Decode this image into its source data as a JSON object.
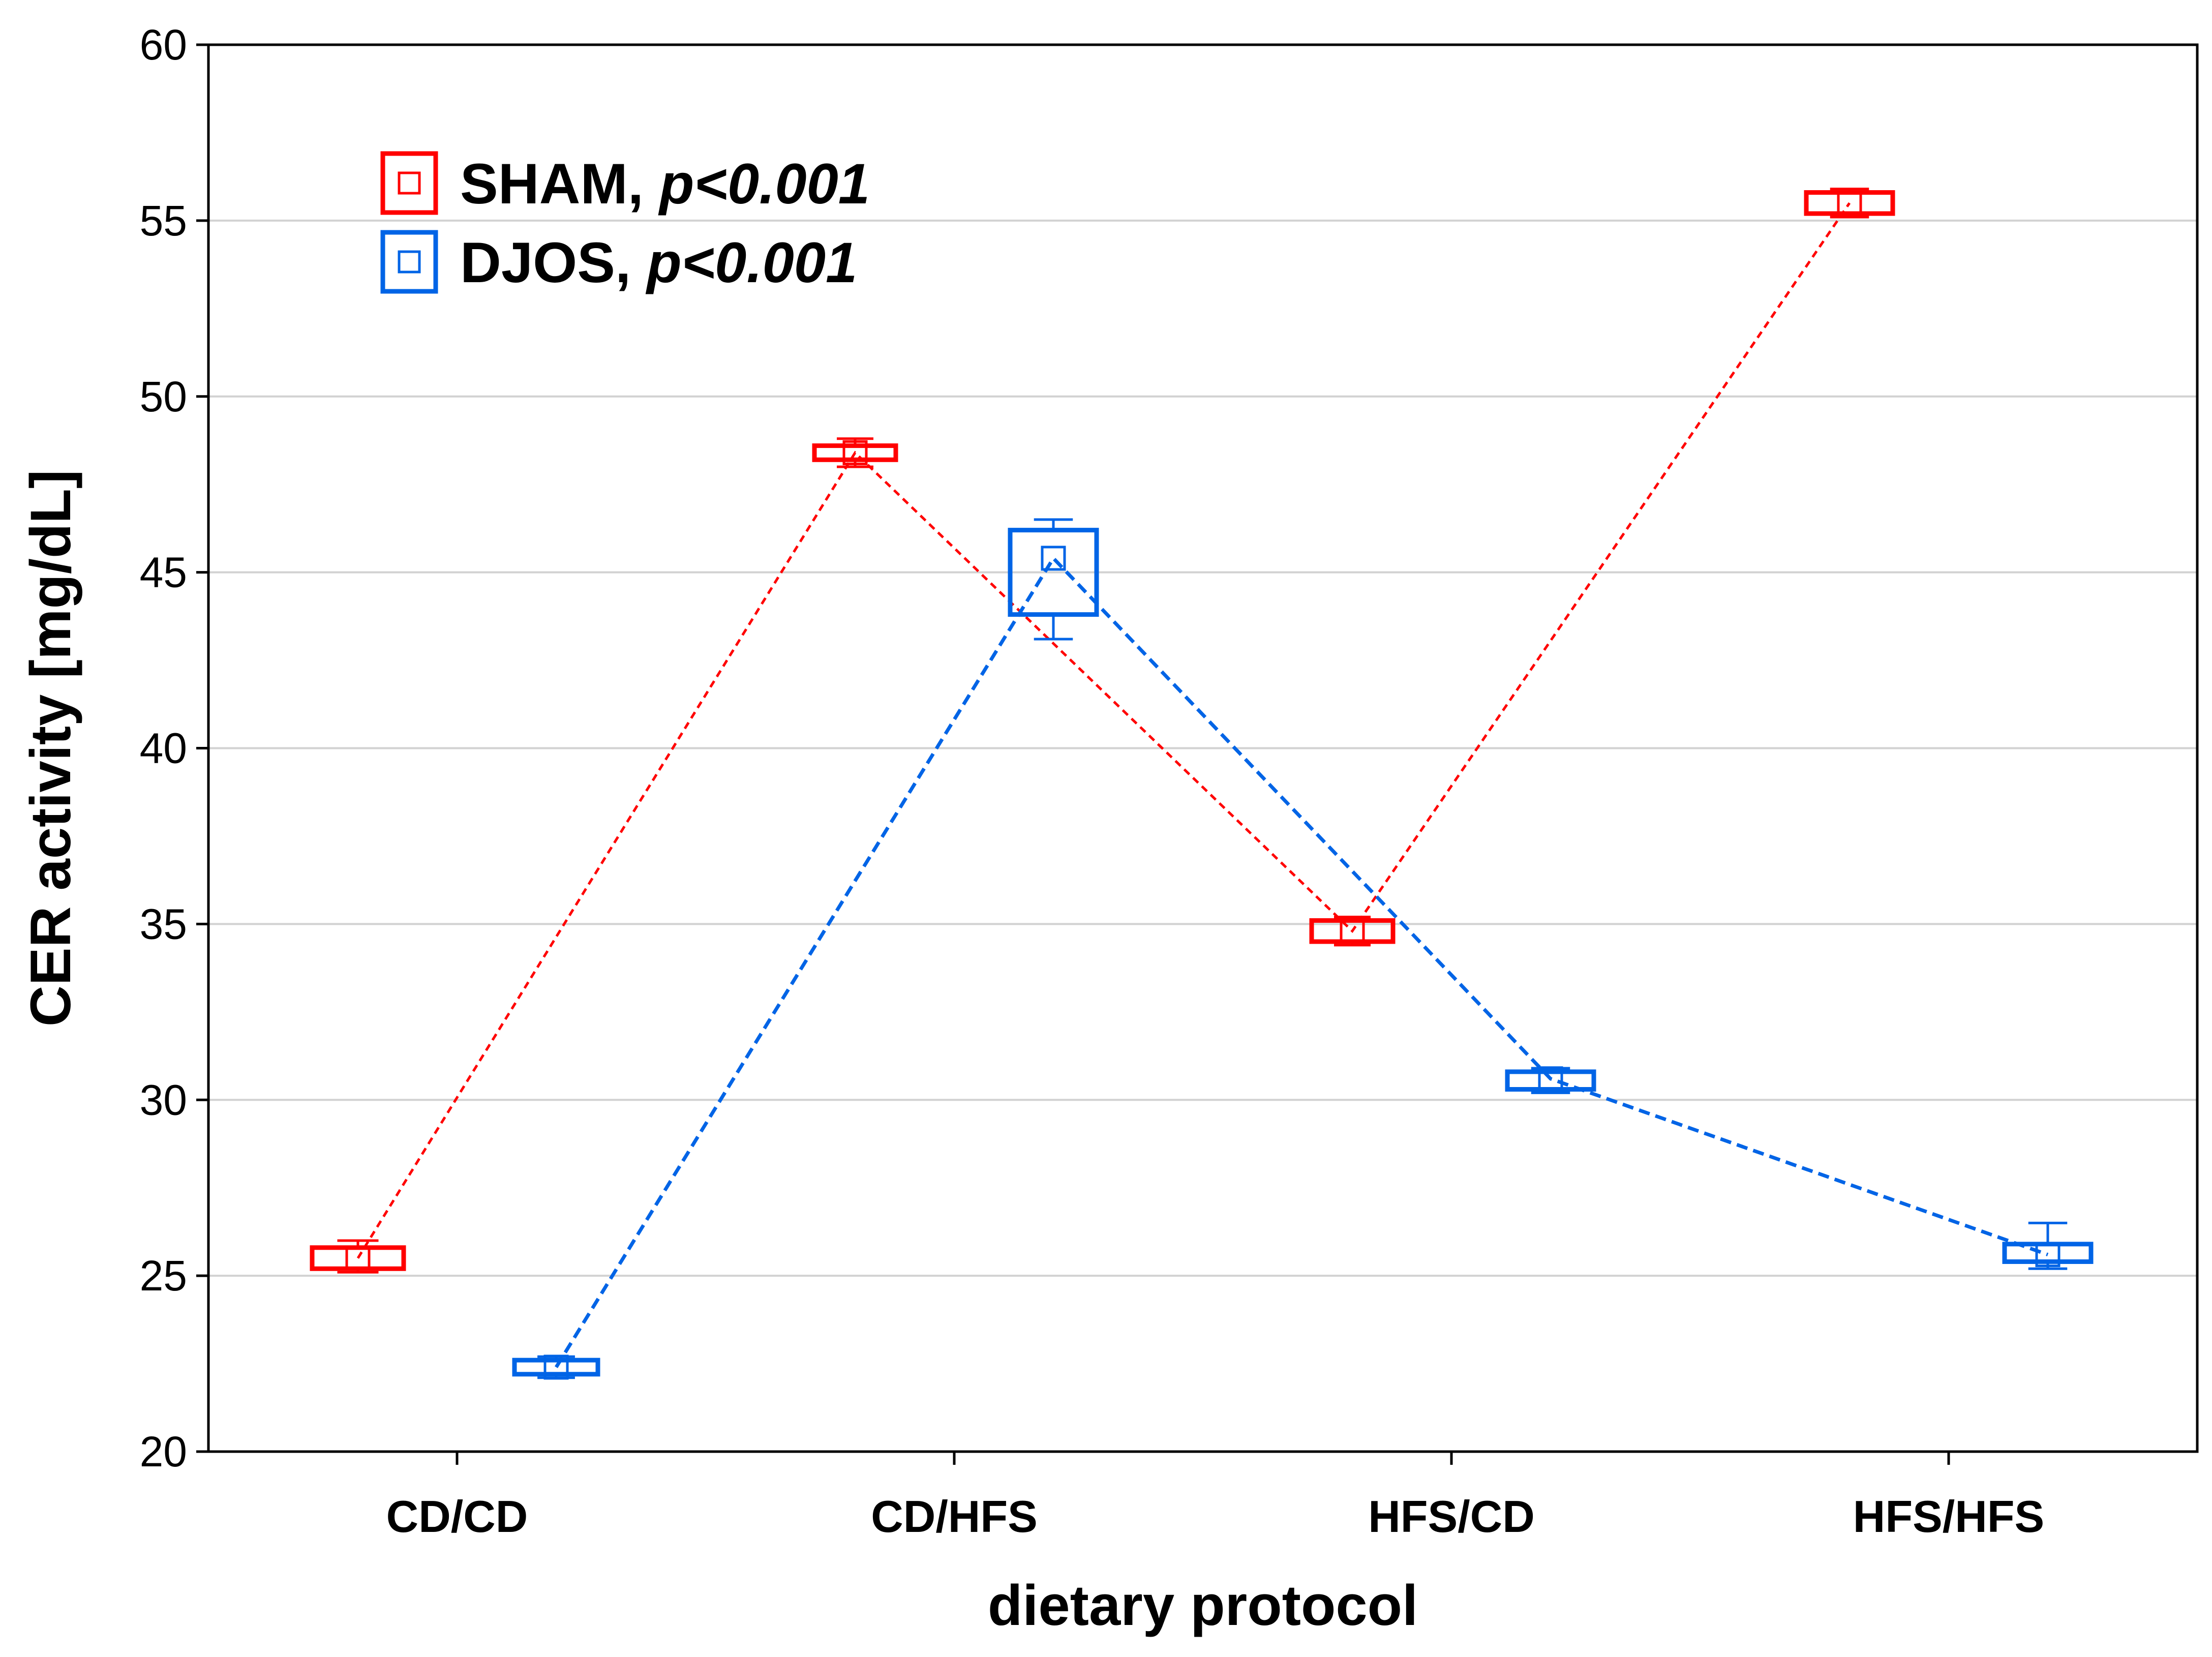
{
  "chart_data": {
    "type": "line",
    "title": "",
    "xlabel": "dietary protocol",
    "ylabel": "CER activity [mg/dL]",
    "ylim": [
      20,
      60
    ],
    "yticks": [
      20,
      25,
      30,
      35,
      40,
      45,
      50,
      55,
      60
    ],
    "grid": true,
    "legend_position": "top-left",
    "categories": [
      "CD/CD",
      "CD/HFS",
      "HFS/CD",
      "HFS/HFS"
    ],
    "series": [
      {
        "name": "SHAM",
        "legend_label": "SHAM, ",
        "p_label": "p<0.001",
        "color": "#ff0000",
        "values": [
          25.5,
          48.4,
          34.8,
          55.5
        ],
        "box_low": [
          25.2,
          48.2,
          34.5,
          55.2
        ],
        "box_high": [
          25.8,
          48.6,
          35.1,
          55.8
        ],
        "whisker_low": [
          25.1,
          48.0,
          34.4,
          55.1
        ],
        "whisker_high": [
          26.0,
          48.8,
          35.2,
          55.9
        ]
      },
      {
        "name": "DJOS",
        "legend_label": "DJOS, ",
        "p_label": "p<0.001",
        "color": "#0064e6",
        "values": [
          22.4,
          45.4,
          30.6,
          25.6
        ],
        "box_low": [
          22.2,
          43.8,
          30.3,
          25.4
        ],
        "box_high": [
          22.6,
          46.2,
          30.8,
          25.9
        ],
        "whisker_low": [
          22.1,
          43.1,
          30.2,
          25.2
        ],
        "whisker_high": [
          22.7,
          46.5,
          30.9,
          26.5
        ]
      }
    ]
  }
}
